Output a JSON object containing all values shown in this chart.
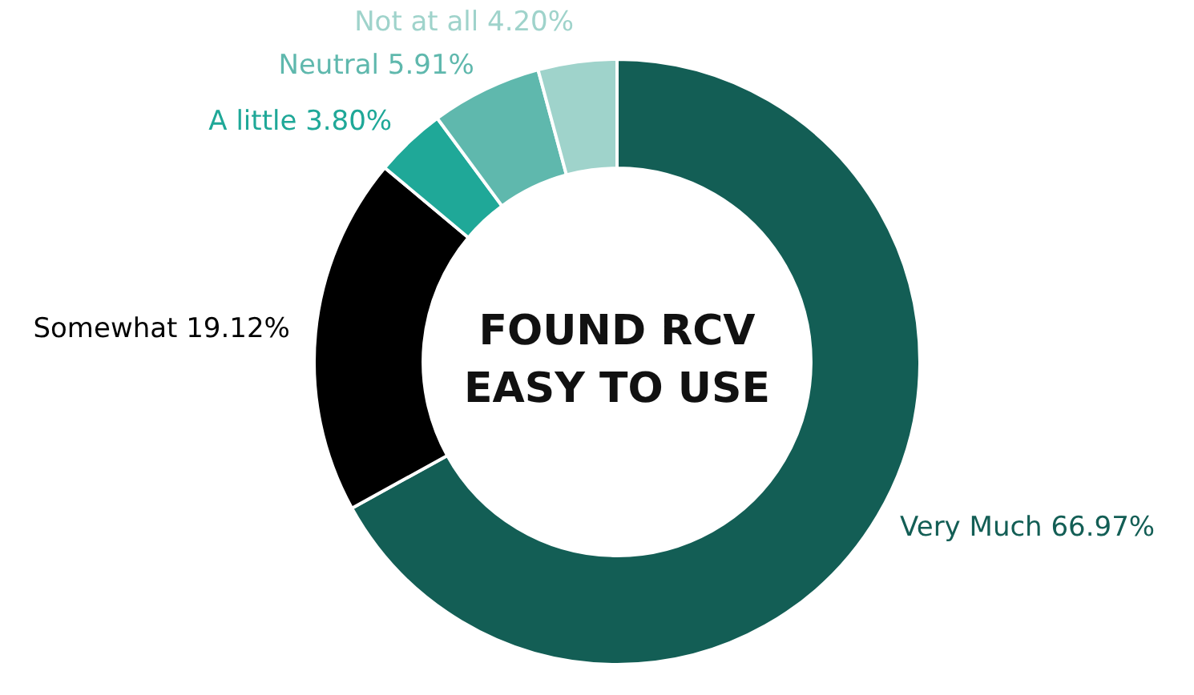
{
  "chart_data": {
    "type": "donut",
    "title": "FOUND RCV EASY TO USE",
    "categories": [
      "Very Much",
      "Somewhat",
      "A little",
      "Neutral",
      "Not at all"
    ],
    "values": [
      66.97,
      19.12,
      3.8,
      5.91,
      4.2
    ],
    "colors": [
      "#135e55",
      "#000000",
      "#1fa898",
      "#5fb8ad",
      "#9fd3cb"
    ],
    "value_labels": [
      "66.97%",
      "19.12%",
      "3.80%",
      "5.91%",
      "4.20%"
    ],
    "legend": false
  }
}
